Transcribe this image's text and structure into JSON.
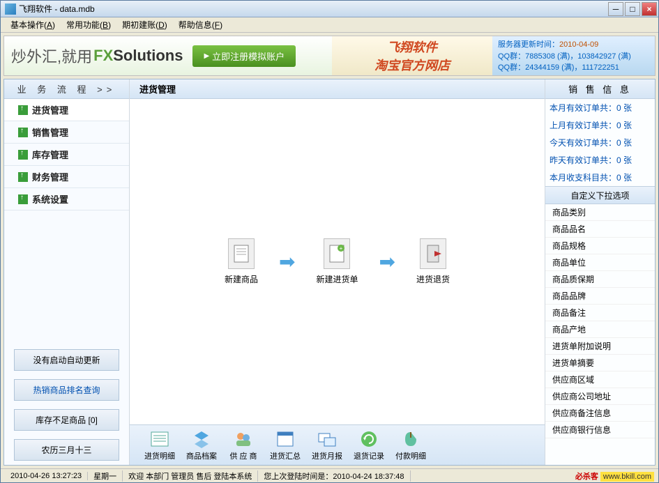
{
  "window": {
    "title": "飞翔软件 - data.mdb"
  },
  "menus": [
    {
      "label": "基本操作",
      "accel": "A"
    },
    {
      "label": "常用功能",
      "accel": "B"
    },
    {
      "label": "期初建账",
      "accel": "D"
    },
    {
      "label": "帮助信息",
      "accel": "F"
    }
  ],
  "banner": {
    "slogan": "炒外汇,就用",
    "logo_fx": "FX",
    "logo_rest": "Solutions",
    "register_btn": "立即注册模拟账户",
    "shop_line1": "飞翔软件",
    "shop_line2": "淘宝官方网店",
    "server_update_label": "服务器更新时间：",
    "server_update_value": "2010-04-09",
    "qq_line1": "QQ群：7885308 (满)，103842927 (满)",
    "qq_line2": "QQ群：24344159 (满)，111722251"
  },
  "left": {
    "header": "业 务 流 程  >>",
    "items": [
      "进货管理",
      "销售管理",
      "库存管理",
      "财务管理",
      "系统设置"
    ],
    "btn1": "没有启动自动更新",
    "btn2": "热销商品排名查询",
    "btn3": "库存不足商品 [0]",
    "btn4": "农历三月十三"
  },
  "main": {
    "header": "进货管理",
    "flow": [
      "新建商品",
      "新建进货单",
      "进货退货"
    ],
    "bottom": [
      "进货明细",
      "商品档案",
      "供 应 商",
      "进货汇总",
      "进货月报",
      "退货记录",
      "付款明细"
    ]
  },
  "right": {
    "header1": "销 售 信 息",
    "stats": [
      "本月有效订单共：0 张",
      "上月有效订单共：0 张",
      "今天有效订单共：0 张",
      "昨天有效订单共：0 张",
      "本月收支科目共：0 张"
    ],
    "header2": "自定义下拉选项",
    "options": [
      "商品类别",
      "商品品名",
      "商品规格",
      "商品单位",
      "商品质保期",
      "商品品牌",
      "商品备注",
      "商品产地",
      "进货单附加说明",
      "进货单摘要",
      "供应商区域",
      "供应商公司地址",
      "供应商备注信息",
      "供应商银行信息"
    ]
  },
  "status": {
    "datetime": "2010-04-26 13:27:23",
    "weekday": "星期一",
    "welcome": "欢迎 本部门 管理员 售后 登陆本系统",
    "lastlogin_label": "您上次登陆时间是：",
    "lastlogin_value": "2010-04-24 18:37:48",
    "brand1": "必杀客",
    "brand2": "www.bkill.com"
  },
  "colors": {
    "titlebar_grad_top": "#e8f0f8",
    "titlebar_grad_bot": "#c5d8ec",
    "accent_blue": "#0050b0",
    "accent_orange": "#c05000",
    "panel_header_top": "#eaf2fb",
    "panel_header_bot": "#d5e5f5"
  }
}
